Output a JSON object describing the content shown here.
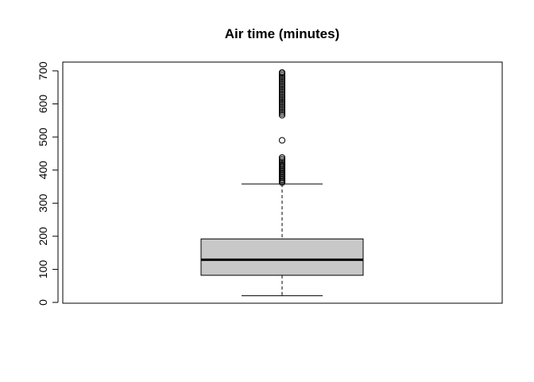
{
  "chart_data": {
    "type": "boxplot",
    "title": "Air time (minutes)",
    "xlabel": "",
    "ylabel": "",
    "ylim": [
      0,
      720
    ],
    "yticks": [
      0,
      100,
      200,
      300,
      400,
      500,
      600,
      700
    ],
    "grid": false,
    "box": {
      "lower_whisker": 20,
      "q1": 82,
      "median": 129,
      "q3": 192,
      "upper_whisker": 358,
      "fill": "#c8c8c8"
    },
    "outliers": [
      362,
      366,
      370,
      374,
      378,
      382,
      386,
      390,
      394,
      398,
      402,
      406,
      410,
      414,
      418,
      423,
      428,
      433,
      438,
      490,
      566,
      571,
      576,
      581,
      586,
      591,
      596,
      601,
      606,
      611,
      616,
      621,
      626,
      631,
      636,
      641,
      646,
      651,
      656,
      661,
      666,
      671,
      676,
      681,
      686,
      691,
      695
    ]
  }
}
